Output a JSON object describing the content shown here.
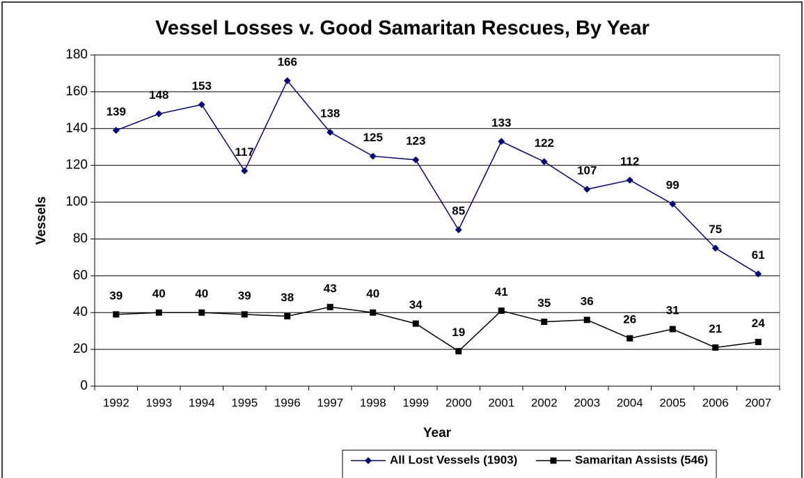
{
  "chart_data": {
    "type": "line",
    "title": "Vessel Losses v. Good Samaritan Rescues, By Year",
    "x_label": "Year",
    "y_label": "Vessels",
    "categories": [
      "1992",
      "1993",
      "1994",
      "1995",
      "1996",
      "1997",
      "1998",
      "1999",
      "2000",
      "2001",
      "2002",
      "2003",
      "2004",
      "2005",
      "2006",
      "2007"
    ],
    "series": [
      {
        "name": "All Lost Vessels (1903)",
        "color": "#000080",
        "marker": "diamond",
        "values": [
          139,
          148,
          153,
          117,
          166,
          138,
          125,
          123,
          85,
          133,
          122,
          107,
          112,
          99,
          75,
          61
        ]
      },
      {
        "name": "Samaritan Assists (546)",
        "color": "#000000",
        "marker": "square",
        "values": [
          39,
          40,
          40,
          39,
          38,
          43,
          40,
          34,
          19,
          41,
          35,
          36,
          26,
          31,
          21,
          24
        ]
      }
    ],
    "ylim": [
      0,
      180
    ],
    "yticks": [
      0,
      20,
      40,
      60,
      80,
      100,
      120,
      140,
      160,
      180
    ],
    "grid": true,
    "data_labels": true,
    "legend": "bottom"
  }
}
